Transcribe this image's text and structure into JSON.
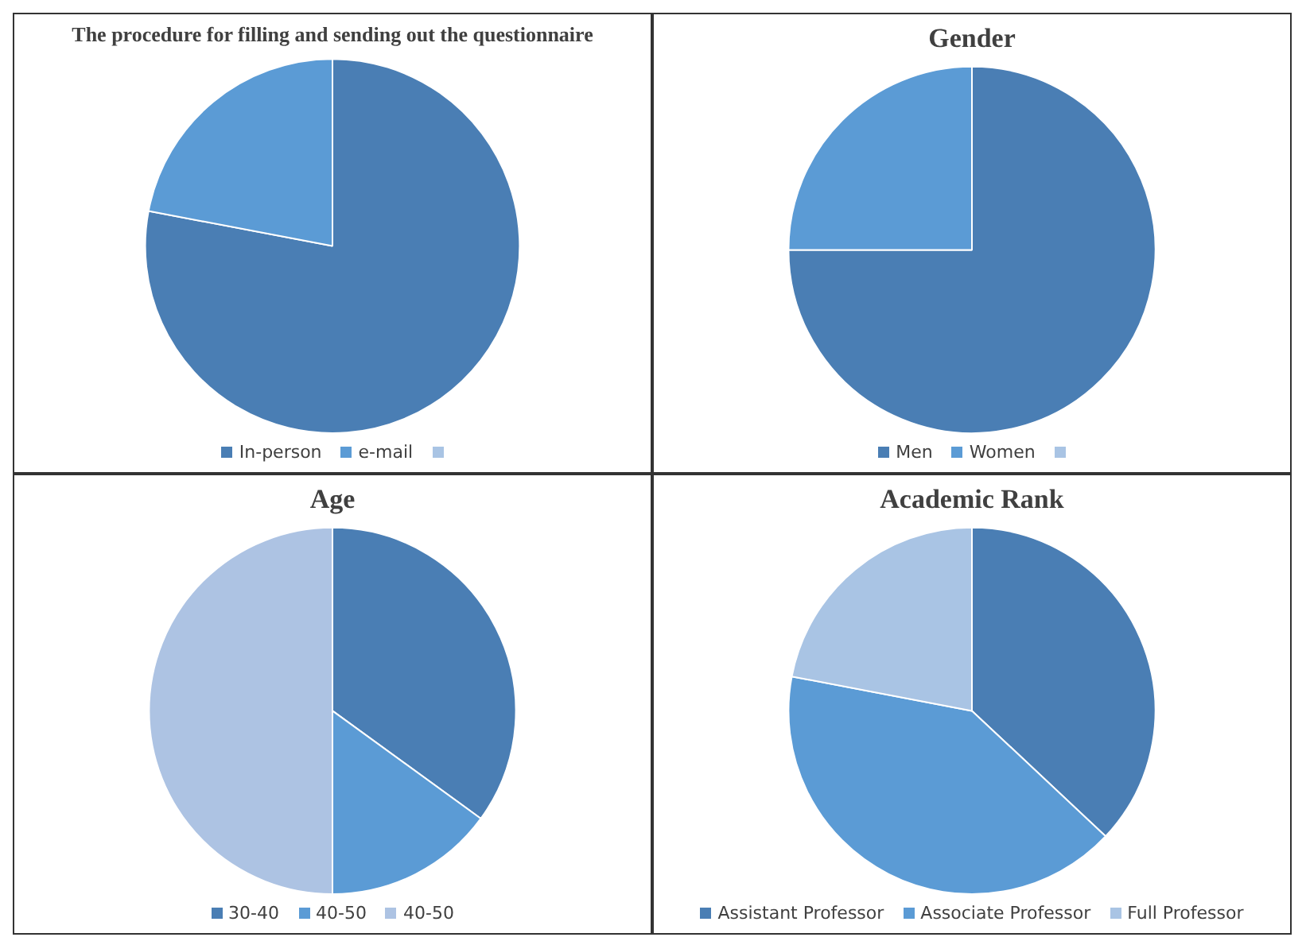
{
  "chart_data": [
    {
      "type": "pie",
      "title": "The procedure for filling and sending out the questionnaire",
      "categories": [
        "In-person",
        "e-mail",
        null
      ],
      "values": [
        78,
        22,
        0
      ],
      "colors": [
        "#4a7eb4",
        "#5b9bd5",
        "#a9c4e4"
      ],
      "legend": "bottom"
    },
    {
      "type": "pie",
      "title": "Gender",
      "categories": [
        "Men",
        "Women",
        null
      ],
      "values": [
        75,
        25,
        0
      ],
      "colors": [
        "#4a7eb4",
        "#5b9bd5",
        "#a9c4e4"
      ],
      "legend": "bottom"
    },
    {
      "type": "pie",
      "title": "Age",
      "categories": [
        "30-40",
        "40-50",
        "40-50"
      ],
      "values": [
        35,
        15,
        50
      ],
      "colors": [
        "#4a7eb4",
        "#5b9bd5",
        "#adc3e3"
      ],
      "legend": "bottom"
    },
    {
      "type": "pie",
      "title": "Academic Rank",
      "categories": [
        "Assistant Professor",
        "Associate Professor",
        "Full Professor"
      ],
      "values": [
        37,
        41,
        22
      ],
      "colors": [
        "#4a7eb4",
        "#5b9bd5",
        "#a9c4e4"
      ],
      "legend": "bottom"
    }
  ]
}
